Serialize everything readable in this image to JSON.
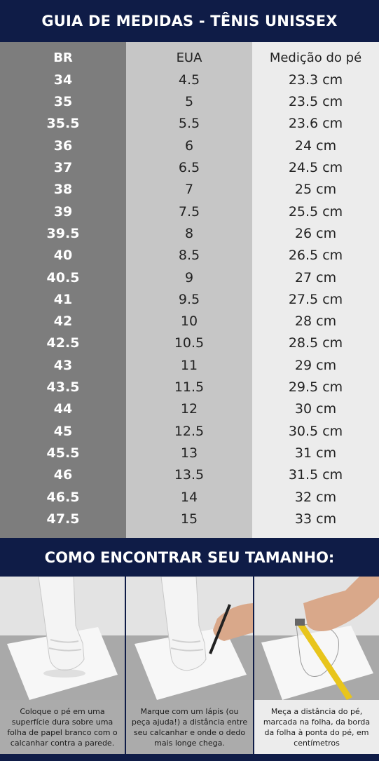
{
  "header": {
    "title": "GUIA DE MEDIDAS - TÊNIS UNISSEX"
  },
  "size_table": {
    "columns": [
      "BR",
      "EUA",
      "Medição do pé"
    ],
    "rows": [
      [
        "34",
        "4.5",
        "23.3 cm"
      ],
      [
        "35",
        "5",
        "23.5 cm"
      ],
      [
        "35.5",
        "5.5",
        "23.6 cm"
      ],
      [
        "36",
        "6",
        "24 cm"
      ],
      [
        "37",
        "6.5",
        "24.5 cm"
      ],
      [
        "38",
        "7",
        "25 cm"
      ],
      [
        "39",
        "7.5",
        "25.5 cm"
      ],
      [
        "39.5",
        "8",
        "26 cm"
      ],
      [
        "40",
        "8.5",
        "26.5 cm"
      ],
      [
        "40.5",
        "9",
        "27 cm"
      ],
      [
        "41",
        "9.5",
        "27.5 cm"
      ],
      [
        "42",
        "10",
        "28 cm"
      ],
      [
        "42.5",
        "10.5",
        "28.5 cm"
      ],
      [
        "43",
        "11",
        "29 cm"
      ],
      [
        "43.5",
        "11.5",
        "29.5 cm"
      ],
      [
        "44",
        "12",
        "30 cm"
      ],
      [
        "45",
        "12.5",
        "30.5 cm"
      ],
      [
        "45.5",
        "13",
        "31 cm"
      ],
      [
        "46",
        "13.5",
        "31.5 cm"
      ],
      [
        "46.5",
        "14",
        "32 cm"
      ],
      [
        "47.5",
        "15",
        "33 cm"
      ]
    ]
  },
  "how_to": {
    "title": "COMO ENCONTRAR SEU TAMANHO:",
    "steps": [
      {
        "caption": "Coloque o pé em uma superfície dura sobre uma folha de papel branco com o calcanhar contra a parede.",
        "photo": "foot-on-paper-photo"
      },
      {
        "caption": "Marque com um lápis (ou peça ajuda!) a distância entre seu calcanhar e onde o dedo mais longe chega.",
        "photo": "pencil-marking-photo"
      },
      {
        "caption": "Meça a distância do pé, marcada na folha, da borda da folha à ponta do pé, em centímetros",
        "photo": "tape-measure-photo"
      }
    ]
  },
  "colors": {
    "navy": "#0f1c47",
    "br_column": "#7d7d7d",
    "us_column": "#c6c6c6",
    "foot_column": "#ececec"
  }
}
